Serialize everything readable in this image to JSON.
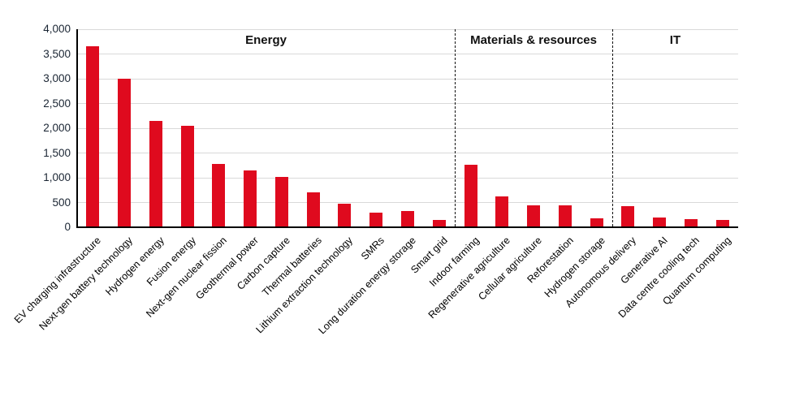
{
  "chart_data": {
    "type": "bar",
    "title": "",
    "xlabel": "",
    "ylabel": "",
    "categories": [
      "EV charging infrastructure",
      "Next-gen battery technology",
      "Hydrogen energy",
      "Fusion energy",
      "Next-gen nuclear fission",
      "Geothermal power",
      "Carbon capture",
      "Thermal batteries",
      "Lithium extraction technology",
      "SMRs",
      "Long duration energy storage",
      "Smart grid",
      "Indoor farming",
      "Regenerative agriculture",
      "Cellular agriculture",
      "Reforestation",
      "Hydrogen storage",
      "Autonomous delivery",
      "Generative AI",
      "Data centre cooling tech",
      "Quantum computing"
    ],
    "values": [
      3650,
      3000,
      2140,
      2050,
      1280,
      1140,
      1010,
      710,
      470,
      300,
      320,
      140,
      1260,
      630,
      440,
      440,
      180,
      430,
      190,
      160,
      140
    ],
    "sections": [
      {
        "label": "Energy",
        "start": 0,
        "count": 12
      },
      {
        "label": "Materials & resources",
        "start": 12,
        "count": 5
      },
      {
        "label": "IT",
        "start": 17,
        "count": 4
      }
    ],
    "ylim": [
      0,
      4000
    ],
    "ytick_step": 500,
    "ytick_labels": [
      "0",
      "500",
      "1,000",
      "1,500",
      "2,000",
      "2,500",
      "3,000",
      "3,500",
      "4,000"
    ],
    "grid": true,
    "legend": "none",
    "colors": {
      "bar": "#df0a1e",
      "grid": "#d9d9d9",
      "axis": "#000000",
      "ytick_text": "#1a2533",
      "category_text": "#000000",
      "section_text": "#111111"
    }
  }
}
